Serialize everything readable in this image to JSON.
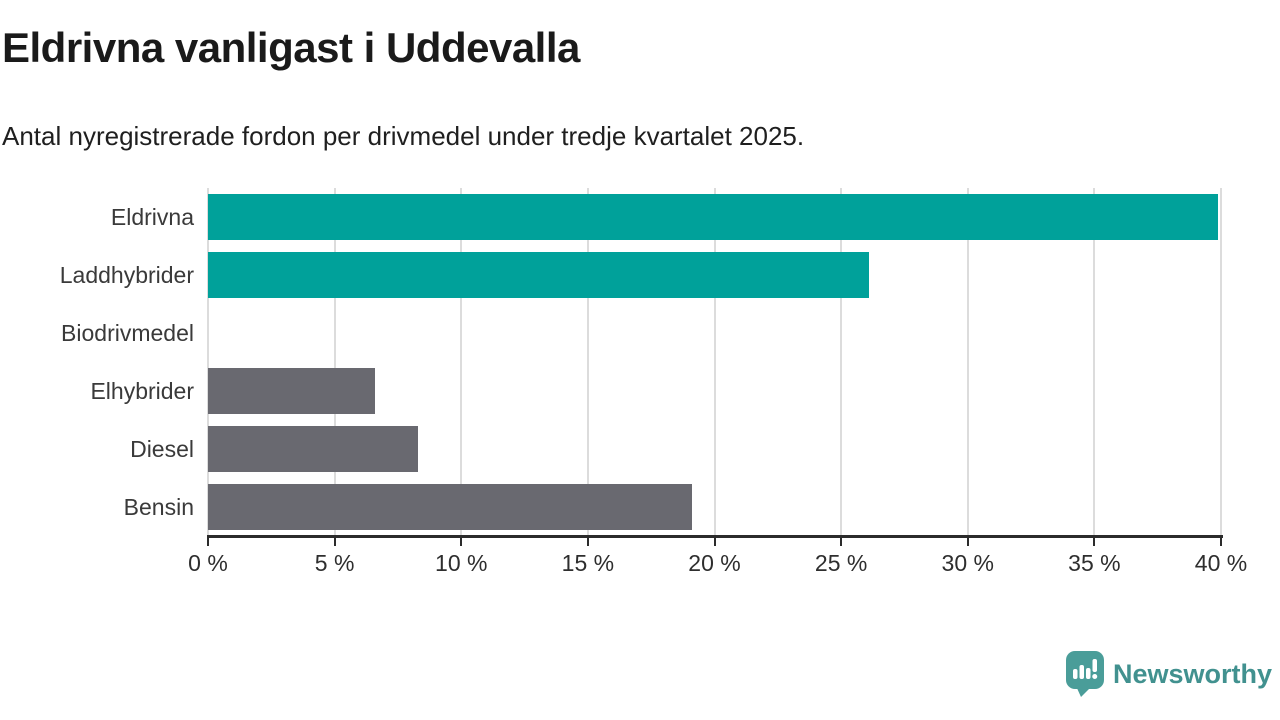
{
  "header": {
    "title": "Eldrivna vanligast i Uddevalla",
    "subtitle": "Antal nyregistrerade fordon per drivmedel under tredje kvartalet 2025."
  },
  "chart_data": {
    "type": "bar",
    "orientation": "horizontal",
    "title": "Eldrivna vanligast i Uddevalla",
    "subtitle": "Antal nyregistrerade fordon per drivmedel under tredje kvartalet 2025.",
    "categories": [
      "Eldrivna",
      "Laddhybrider",
      "Biodrivmedel",
      "Elhybrider",
      "Diesel",
      "Bensin"
    ],
    "values": [
      39.9,
      26.1,
      0,
      6.6,
      8.3,
      19.1
    ],
    "bar_colors": [
      "#00A19A",
      "#00A19A",
      "#696970",
      "#696970",
      "#696970",
      "#696970"
    ],
    "highlight_color": "#00A19A",
    "default_color": "#696970",
    "xlabel": "",
    "ylabel": "",
    "xlim": [
      0,
      40
    ],
    "x_ticks": [
      0,
      5,
      10,
      15,
      20,
      25,
      30,
      35,
      40
    ],
    "x_tick_suffix": " %",
    "grid": true,
    "gridline_color": "#dcdcdc",
    "axis_color": "#2b2b2b",
    "legend": "none"
  },
  "footer": {
    "brand": "Newsworthy",
    "brand_text_color": "#41918f",
    "logo_icon": "bar-chart-speech-bubble",
    "logo_icon_color": "#4a9d99"
  }
}
